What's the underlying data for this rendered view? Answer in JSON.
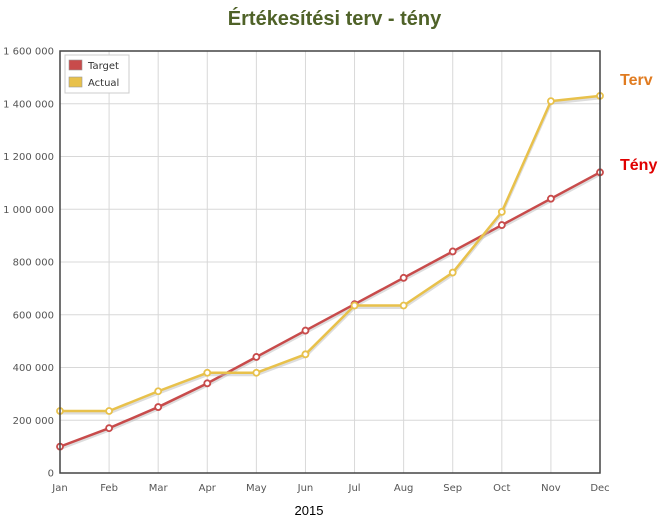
{
  "chart_data": {
    "type": "line",
    "title": "Értékesítési terv - tény",
    "xlabel": "2015",
    "ylabel": "",
    "categories": [
      "Jan",
      "Feb",
      "Mar",
      "Apr",
      "May",
      "Jun",
      "Jul",
      "Aug",
      "Sep",
      "Oct",
      "Nov",
      "Dec"
    ],
    "ylim": [
      0,
      1600000
    ],
    "yticks": [
      0,
      200000,
      400000,
      600000,
      800000,
      1000000,
      1200000,
      1400000,
      1600000
    ],
    "ytick_labels": [
      "0",
      "200 000",
      "400 000",
      "600 000",
      "800 000",
      "1 000 000",
      "1 200 000",
      "1 400 000",
      "1 600 000"
    ],
    "grid": true,
    "legend_position": "top-left",
    "series": [
      {
        "name": "Target",
        "color": "#c84b4b",
        "values": [
          100000,
          170000,
          250000,
          340000,
          440000,
          540000,
          640000,
          740000,
          840000,
          940000,
          1040000,
          1140000
        ]
      },
      {
        "name": "Actual",
        "color": "#e8c14b",
        "values": [
          235000,
          235000,
          310000,
          380000,
          380000,
          450000,
          635000,
          635000,
          760000,
          990000,
          1410000,
          1430000
        ]
      }
    ],
    "annotations": [
      {
        "text": "Terv",
        "color": "#e07b20"
      },
      {
        "text": "Tény",
        "color": "#e00000"
      }
    ],
    "title_color": "#4f6228"
  }
}
